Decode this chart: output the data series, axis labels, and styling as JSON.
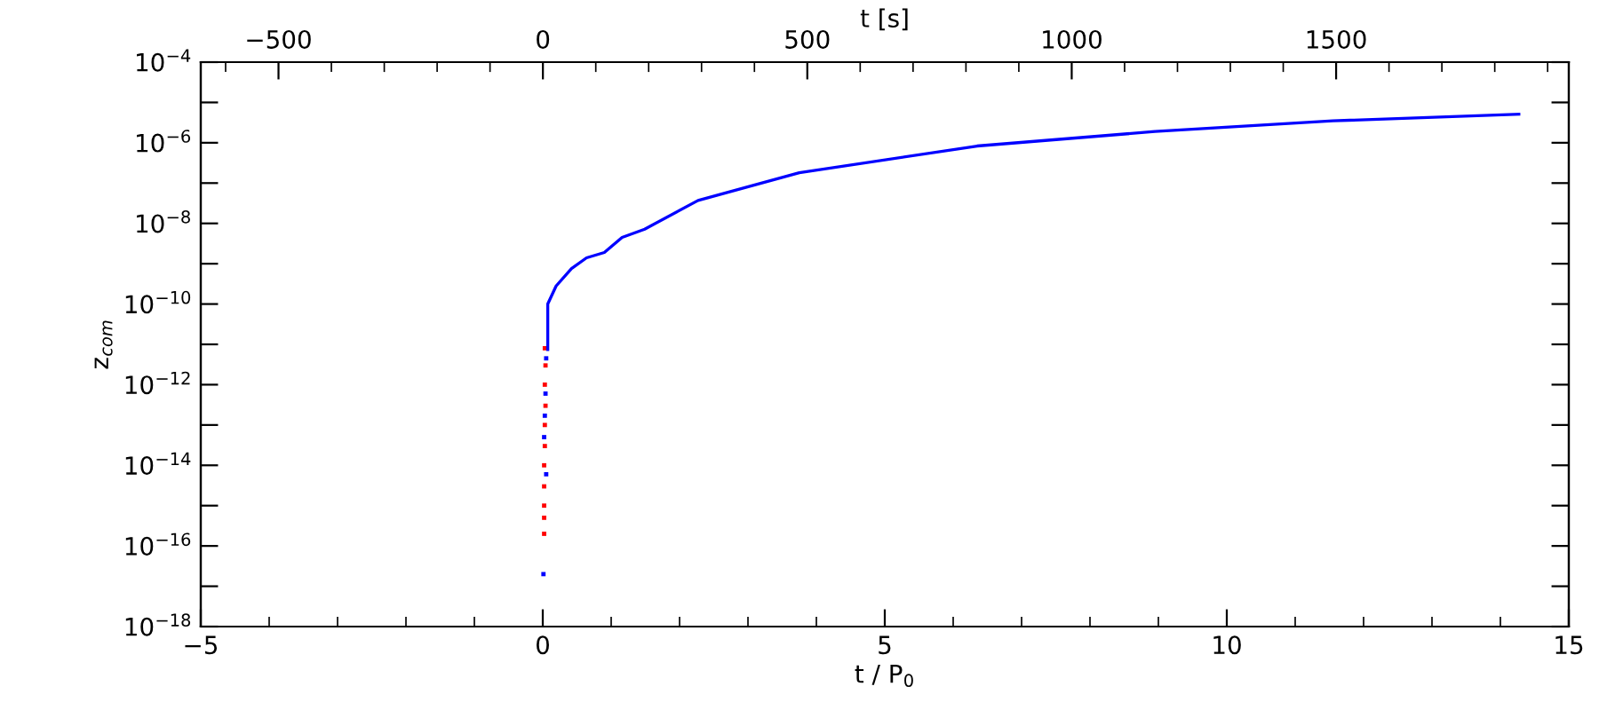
{
  "chart_data": {
    "type": "line",
    "xlabel": "t / P$_{0}$",
    "ylabel": "z$_{com}$",
    "x2label": "t [s]",
    "log": "y",
    "grid": false,
    "xlim": [
      -5,
      15
    ],
    "xticks": [
      -5,
      0,
      5,
      10,
      15
    ],
    "x2lim": [
      -647,
      1940
    ],
    "x2ticks": [
      -500,
      0,
      500,
      1000,
      1500
    ],
    "ylim": [
      1e-18,
      0.0001
    ],
    "yticks": [
      {
        "value": 1e-18,
        "label": "10$^{−18}$"
      },
      {
        "value": 1e-17,
        "label": null
      },
      {
        "value": 1e-16,
        "label": "10$^{−16}$"
      },
      {
        "value": 1e-15,
        "label": null
      },
      {
        "value": 1e-14,
        "label": "10$^{−14}$"
      },
      {
        "value": 1e-13,
        "label": null
      },
      {
        "value": 1e-12,
        "label": "10$^{−12}$"
      },
      {
        "value": 1e-11,
        "label": null
      },
      {
        "value": 1e-10,
        "label": "10$^{−10}$"
      },
      {
        "value": 1e-09,
        "label": null
      },
      {
        "value": 1e-08,
        "label": "10$^{−8}$"
      },
      {
        "value": 1e-07,
        "label": null
      },
      {
        "value": 1e-06,
        "label": "10$^{−6}$"
      },
      {
        "value": 1e-05,
        "label": null
      },
      {
        "value": 0.0001,
        "label": "10$^{−4}$"
      }
    ],
    "series": [
      {
        "color": "#0000ff",
        "x": [
          0.073,
          0.073,
          0.195,
          0.42,
          0.64,
          0.9,
          1.16,
          1.49,
          2.27,
          3.75,
          6.35,
          8.95,
          11.55,
          14.27
        ],
        "values": [
          7.4e-12,
          1e-10,
          2.8e-10,
          7.6e-10,
          1.4e-09,
          1.9e-09,
          4.5e-09,
          7.2e-09,
          3.7e-08,
          1.8e-07,
          8.3e-07,
          1.9e-06,
          3.5e-06,
          5.1e-06
        ]
      },
      {
        "type": "scatter",
        "color": "#ff0000",
        "x": [
          0.03,
          0.04,
          0.03,
          0.04,
          0.03,
          0.03,
          0.02,
          0.02,
          0.02,
          0.02,
          0.02
        ],
        "values": [
          8e-12,
          3e-12,
          1e-12,
          3e-13,
          1e-13,
          3e-14,
          1e-14,
          3e-15,
          1e-15,
          5e-16,
          2e-16
        ]
      },
      {
        "type": "scatter",
        "color": "#0000ff",
        "x": [
          0.05,
          0.04,
          0.03,
          0.02,
          0.05,
          0.01
        ],
        "values": [
          4.5e-12,
          6e-13,
          1.7e-13,
          5e-14,
          6e-15,
          2e-17
        ]
      }
    ]
  }
}
